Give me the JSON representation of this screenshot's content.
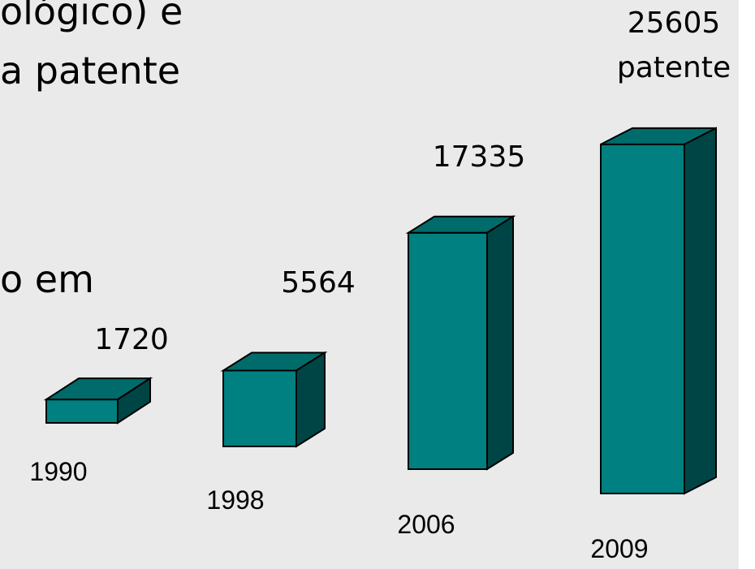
{
  "slide_text": [
    "ológico) e",
    "a patente",
    "o em"
  ],
  "chart_data": {
    "type": "bar",
    "categories": [
      "1990",
      "1998",
      "2006",
      "2009"
    ],
    "values": [
      1720,
      5564,
      17335,
      25605
    ],
    "annotations": [
      "patente"
    ],
    "colors": {
      "front": "#008080",
      "top": "#006b6b",
      "side": "#004545"
    }
  }
}
